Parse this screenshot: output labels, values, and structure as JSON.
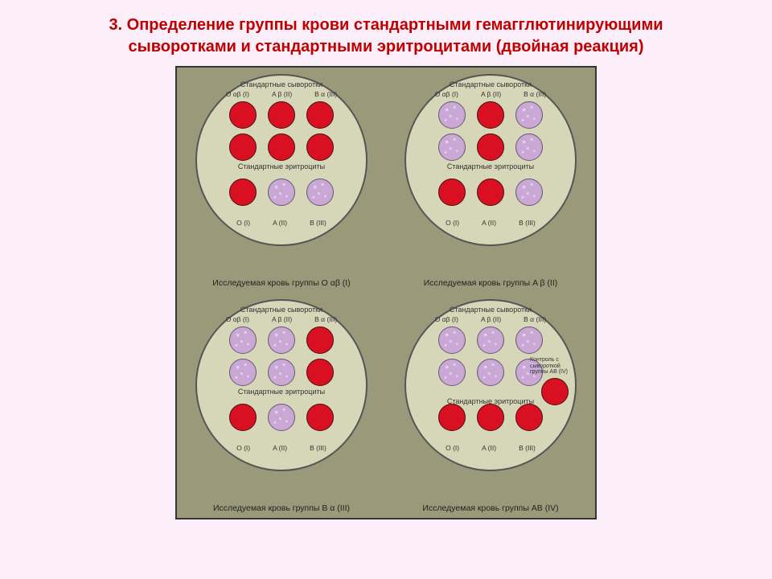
{
  "title_line1": "3. Определение группы крови стандартными гемагглютинирующими",
  "title_line2": "сыворотками и стандартными эритроцитами (двойная реакция)",
  "section_serum": "Стандартные сыворотки",
  "section_rbc": "Стандартные эритроциты",
  "serum_labels": [
    "O αβ (I)",
    "A β (II)",
    "B α (III)"
  ],
  "rbc_labels": [
    "O (I)",
    "A (II)",
    "B (III)"
  ],
  "control_label": "Контроль с сывороткой группы AB (IV)",
  "colors": {
    "no_aggl": "#d81021",
    "aggl": "#c9a8d6",
    "plate": "#d6d6b8",
    "board": "#9a9a7a"
  },
  "plates": [
    {
      "caption": "Исследуемая кровь группы O αβ (I)",
      "serum_row1": [
        "no",
        "no",
        "no"
      ],
      "serum_row2": [
        "no",
        "no",
        "no"
      ],
      "rbc_row": [
        "no",
        "ag",
        "ag"
      ],
      "control": null
    },
    {
      "caption": "Исследуемая кровь группы A β (II)",
      "serum_row1": [
        "ag",
        "no",
        "ag"
      ],
      "serum_row2": [
        "ag",
        "no",
        "ag"
      ],
      "rbc_row": [
        "no",
        "no",
        "ag"
      ],
      "control": null
    },
    {
      "caption": "Исследуемая кровь группы B α (III)",
      "serum_row1": [
        "ag",
        "ag",
        "no"
      ],
      "serum_row2": [
        "ag",
        "ag",
        "no"
      ],
      "rbc_row": [
        "no",
        "ag",
        "no"
      ],
      "control": null
    },
    {
      "caption": "Исследуемая кровь группы AB (IV)",
      "serum_row1": [
        "ag",
        "ag",
        "ag"
      ],
      "serum_row2": [
        "ag",
        "ag",
        "ag"
      ],
      "rbc_row": [
        "no",
        "no",
        "no"
      ],
      "control": "no"
    }
  ]
}
